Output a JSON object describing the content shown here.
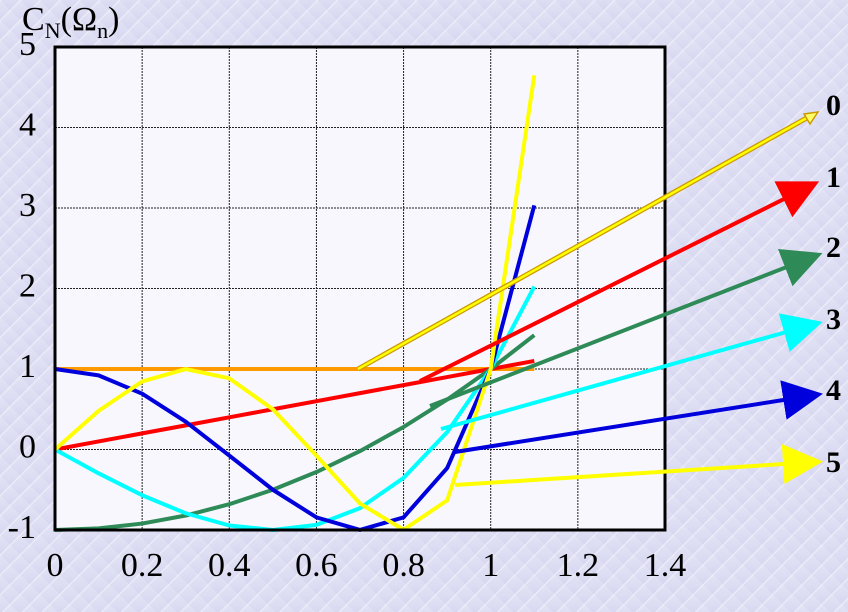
{
  "chart_data": {
    "type": "line",
    "y_label_parts": [
      "C",
      "N",
      "(Ω",
      "n",
      ")"
    ],
    "x": [
      0,
      0.1,
      0.2,
      0.3,
      0.4,
      0.5,
      0.6,
      0.7,
      0.8,
      0.9,
      1,
      1.1
    ],
    "series": [
      {
        "name": "0",
        "color": "#ff9900",
        "values": [
          1,
          1,
          1,
          1,
          1,
          1,
          1,
          1,
          1,
          1,
          1,
          1
        ]
      },
      {
        "name": "1",
        "color": "#ff0000",
        "values": [
          0,
          0.1,
          0.2,
          0.3,
          0.4,
          0.5,
          0.6,
          0.7,
          0.8,
          0.9,
          1,
          1.1
        ]
      },
      {
        "name": "2",
        "color": "#2e8b57",
        "values": [
          -1,
          -0.98,
          -0.92,
          -0.82,
          -0.68,
          -0.5,
          -0.28,
          -0.02,
          0.28,
          0.62,
          1,
          1.42
        ]
      },
      {
        "name": "3",
        "color": "#00ffff",
        "values": [
          0,
          -0.296,
          -0.568,
          -0.792,
          -0.944,
          -1,
          -0.936,
          -0.728,
          -0.352,
          0.216,
          1,
          2.024
        ]
      },
      {
        "name": "4",
        "color": "#0000dd",
        "values": [
          1,
          0.921,
          0.693,
          0.345,
          -0.075,
          -0.5,
          -0.843,
          -0.999,
          -0.843,
          -0.231,
          1,
          3.033
        ]
      },
      {
        "name": "5",
        "color": "#ffff00",
        "values": [
          0,
          0.48,
          0.845,
          0.999,
          0.884,
          0.5,
          -0.076,
          -0.671,
          -0.997,
          -0.632,
          1,
          4.648
        ]
      }
    ],
    "xlim": [
      0,
      1.4
    ],
    "ylim": [
      -1,
      5
    ],
    "xticks": [
      0,
      0.2,
      0.4,
      0.6,
      0.8,
      1,
      1.2,
      1.4
    ],
    "yticks": [
      -1,
      0,
      1,
      2,
      3,
      4,
      5
    ],
    "grid": true
  }
}
